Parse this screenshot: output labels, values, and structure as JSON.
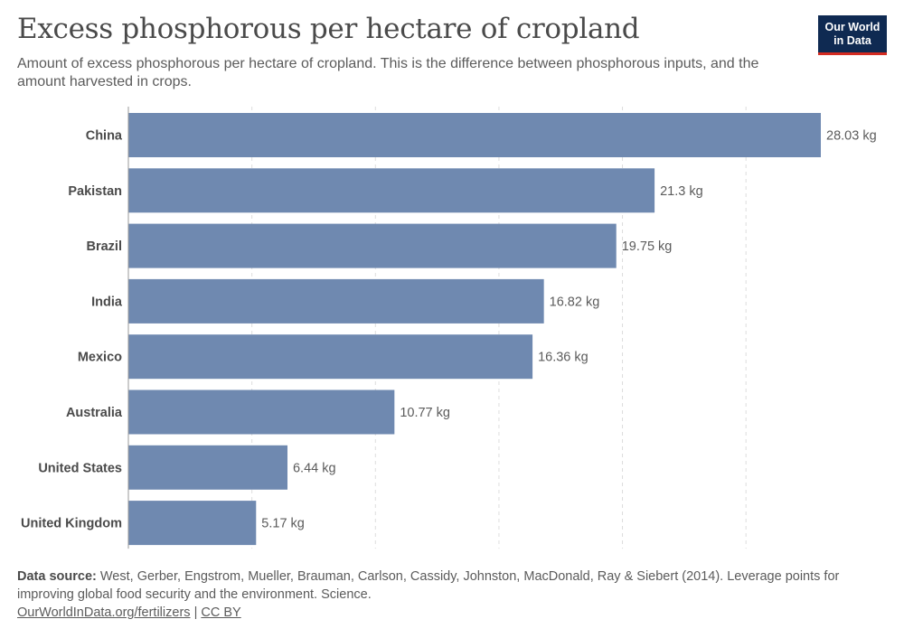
{
  "header": {
    "title": "Excess phosphorous per hectare of cropland",
    "subtitle": "Amount of excess phosphorous per hectare of cropland. This is the difference between phosphorous inputs, and the amount harvested in crops.",
    "logo_line1": "Our World",
    "logo_line2": "in Data"
  },
  "colors": {
    "bar": "#6f89b0",
    "grid": "#dddddd",
    "axis": "#999999",
    "logo_bg": "#0f2a52",
    "logo_accent": "#d42b21"
  },
  "chart_data": {
    "type": "bar",
    "orientation": "horizontal",
    "title": "Excess phosphorous per hectare of cropland",
    "unit": "kg",
    "categories": [
      "China",
      "Pakistan",
      "Brazil",
      "India",
      "Mexico",
      "Australia",
      "United States",
      "United Kingdom"
    ],
    "values": [
      28.03,
      21.3,
      19.75,
      16.82,
      16.36,
      10.77,
      6.44,
      5.17
    ],
    "value_labels": [
      "28.03 kg",
      "21.3 kg",
      "19.75 kg",
      "16.82 kg",
      "16.36 kg",
      "10.77 kg",
      "6.44 kg",
      "5.17 kg"
    ],
    "xlim": [
      0,
      28.03
    ],
    "grid": true,
    "grid_values": [
      5,
      10,
      15,
      20,
      25
    ],
    "legend": "none"
  },
  "footer": {
    "source_label": "Data source:",
    "source_text": "West, Gerber, Engstrom, Mueller, Brauman, Carlson, Cassidy, Johnston, MacDonald, Ray & Siebert (2014). Leverage points for improving global food security and the environment. Science.",
    "link_text": "OurWorldInData.org/fertilizers",
    "separator": "|",
    "license": "CC BY"
  }
}
